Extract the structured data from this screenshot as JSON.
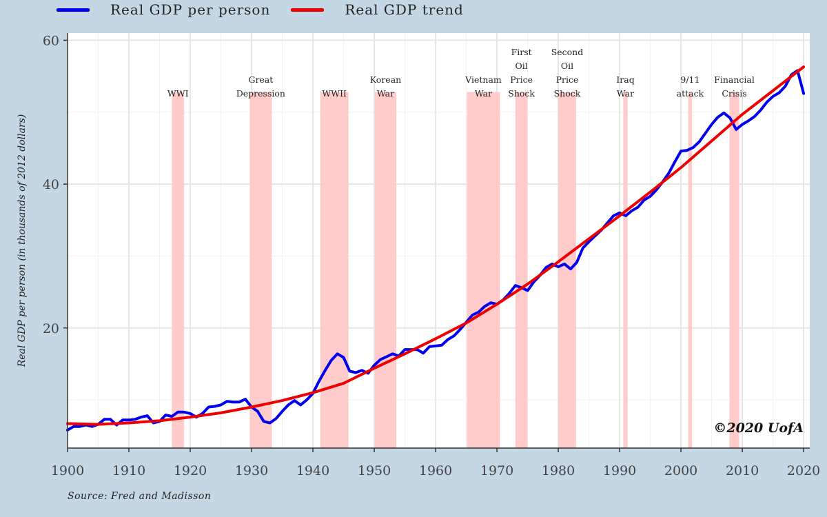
{
  "legend": [
    {
      "label": "Real GDP per person",
      "color": "#0000ee"
    },
    {
      "label": "Real GDP trend",
      "color": "#ee0000"
    }
  ],
  "source": "Source: Fred and Madisson",
  "copyright": "©2020 UofA",
  "chart_data": {
    "type": "line",
    "ylabel": "Real GDP per person (in thousands of 2012 dollars)",
    "xlim": [
      1900,
      2021
    ],
    "ylim": [
      3.3,
      61
    ],
    "xticks": [
      1900,
      1910,
      1920,
      1930,
      1940,
      1950,
      1960,
      1970,
      1980,
      1990,
      2000,
      2010,
      2020
    ],
    "yticks": [
      20,
      40,
      60
    ],
    "grid": true,
    "legend_position": "top",
    "series": [
      {
        "name": "Real GDP per person",
        "color": "#0000ee",
        "x": [
          1900,
          1901,
          1902,
          1903,
          1904,
          1905,
          1906,
          1907,
          1908,
          1909,
          1910,
          1911,
          1912,
          1913,
          1914,
          1915,
          1916,
          1917,
          1918,
          1919,
          1920,
          1921,
          1922,
          1923,
          1924,
          1925,
          1926,
          1927,
          1928,
          1929,
          1930,
          1931,
          1932,
          1933,
          1934,
          1935,
          1936,
          1937,
          1938,
          1939,
          1940,
          1941,
          1942,
          1943,
          1944,
          1945,
          1946,
          1947,
          1948,
          1949,
          1950,
          1951,
          1952,
          1953,
          1954,
          1955,
          1956,
          1957,
          1958,
          1959,
          1960,
          1961,
          1962,
          1963,
          1964,
          1965,
          1966,
          1967,
          1968,
          1969,
          1970,
          1971,
          1972,
          1973,
          1974,
          1975,
          1976,
          1977,
          1978,
          1979,
          1980,
          1981,
          1982,
          1983,
          1984,
          1985,
          1986,
          1987,
          1988,
          1989,
          1990,
          1991,
          1992,
          1993,
          1994,
          1995,
          1996,
          1997,
          1998,
          1999,
          2000,
          2001,
          2002,
          2003,
          2004,
          2005,
          2006,
          2007,
          2008,
          2009,
          2010,
          2011,
          2012,
          2013,
          2014,
          2015,
          2016,
          2017,
          2018,
          2019,
          2020
        ],
        "y": [
          5.8,
          6.3,
          6.3,
          6.5,
          6.3,
          6.6,
          7.3,
          7.3,
          6.5,
          7.2,
          7.2,
          7.3,
          7.6,
          7.8,
          6.8,
          7.0,
          7.9,
          7.7,
          8.3,
          8.3,
          8.1,
          7.6,
          8.1,
          9.0,
          9.1,
          9.3,
          9.8,
          9.7,
          9.7,
          10.1,
          9.0,
          8.4,
          7.0,
          6.8,
          7.4,
          8.4,
          9.3,
          9.9,
          9.3,
          10.0,
          10.9,
          12.6,
          14.1,
          15.5,
          16.4,
          15.9,
          14.0,
          13.8,
          14.1,
          13.7,
          14.8,
          15.6,
          16.0,
          16.4,
          16.1,
          17.0,
          17.0,
          17.0,
          16.5,
          17.4,
          17.5,
          17.6,
          18.4,
          18.9,
          19.8,
          20.8,
          21.8,
          22.2,
          23.0,
          23.5,
          23.3,
          23.9,
          24.8,
          25.9,
          25.6,
          25.2,
          26.4,
          27.3,
          28.4,
          28.9,
          28.5,
          28.9,
          28.2,
          29.1,
          31.1,
          32.0,
          32.8,
          33.6,
          34.6,
          35.6,
          36.0,
          35.6,
          36.3,
          36.8,
          37.8,
          38.3,
          39.2,
          40.3,
          41.5,
          43.1,
          44.6,
          44.7,
          45.1,
          45.9,
          47.1,
          48.3,
          49.3,
          49.9,
          49.2,
          47.6,
          48.3,
          48.8,
          49.4,
          50.3,
          51.4,
          52.2,
          52.7,
          53.6,
          55.2,
          55.8,
          52.6
        ]
      },
      {
        "name": "Real GDP trend",
        "color": "#ee0000",
        "x": [
          1900,
          1905,
          1910,
          1915,
          1920,
          1925,
          1930,
          1935,
          1940,
          1945,
          1950,
          1955,
          1960,
          1965,
          1970,
          1975,
          1980,
          1985,
          1990,
          1995,
          2000,
          2005,
          2010,
          2015,
          2020
        ],
        "y": [
          6.7,
          6.6,
          6.8,
          7.1,
          7.6,
          8.2,
          9.0,
          9.9,
          11.0,
          12.3,
          14.4,
          16.4,
          18.5,
          20.7,
          23.3,
          26.1,
          29.2,
          32.4,
          35.6,
          38.9,
          42.3,
          46.0,
          49.7,
          53.0,
          56.3
        ]
      }
    ],
    "annotations": [
      {
        "label": [
          "WWI"
        ],
        "start": 1917,
        "end": 1919
      },
      {
        "label": [
          "Great",
          "Depression"
        ],
        "start": 1929.7,
        "end": 1933.3
      },
      {
        "label": [
          "WWII"
        ],
        "start": 1941.2,
        "end": 1945.8
      },
      {
        "label": [
          "Korean",
          "War"
        ],
        "start": 1950.1,
        "end": 1953.6
      },
      {
        "label": [
          "Vietnam",
          "War"
        ],
        "start": 1965.1,
        "end": 1970.5
      },
      {
        "label": [
          "First",
          "Oil",
          "Price",
          "Shock"
        ],
        "start": 1973,
        "end": 1975
      },
      {
        "label": [
          "Second",
          "Oil",
          "Price",
          "Shock"
        ],
        "start": 1980,
        "end": 1982.9
      },
      {
        "label": [
          "Iraq",
          "War"
        ],
        "start": 1990.6,
        "end": 1991.3
      },
      {
        "label": [
          "9/11",
          "attack"
        ],
        "start": 2001.2,
        "end": 2001.8
      },
      {
        "label": [
          "Financial",
          "Crisis"
        ],
        "start": 2007.9,
        "end": 2009.5
      }
    ]
  }
}
